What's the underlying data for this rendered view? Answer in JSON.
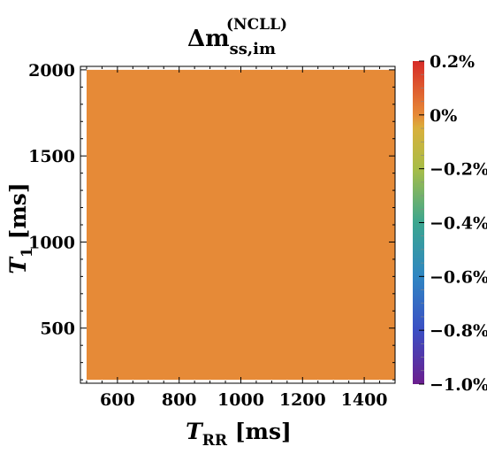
{
  "chart_data": {
    "type": "heatmap",
    "title": {
      "base": "Δm",
      "subscript": "ss,im",
      "superscript": "(NCLL)"
    },
    "xlabel": {
      "base": "T",
      "subscript": "RR",
      "unit": " [ms]"
    },
    "ylabel": {
      "base": "T",
      "subscript": "1",
      "unit": " [ms]"
    },
    "xlim": [
      480,
      1500
    ],
    "ylim": [
      180,
      2020
    ],
    "data_extent": {
      "x": [
        500,
        1500
      ],
      "y": [
        200,
        2000
      ]
    },
    "x_ticks": [
      {
        "value": 600,
        "label": "600"
      },
      {
        "value": 800,
        "label": "800"
      },
      {
        "value": 1000,
        "label": "1000"
      },
      {
        "value": 1200,
        "label": "1200"
      },
      {
        "value": 1400,
        "label": "1400"
      }
    ],
    "y_ticks": [
      {
        "value": 500,
        "label": "500"
      },
      {
        "value": 1000,
        "label": "1000"
      },
      {
        "value": 1500,
        "label": "1500"
      },
      {
        "value": 2000,
        "label": "2000"
      }
    ],
    "field_value_percent": 0,
    "field_color": "#e68a37",
    "grid": false,
    "colorbar": {
      "range_percent": [
        -1.0,
        0.2
      ],
      "stops": [
        {
          "value": -1.0,
          "color": "#6b1e8e"
        },
        {
          "value": -0.8,
          "color": "#3b4fc4"
        },
        {
          "value": -0.6,
          "color": "#2f86c2"
        },
        {
          "value": -0.4,
          "color": "#3ca68f"
        },
        {
          "value": -0.2,
          "color": "#a8bd47"
        },
        {
          "value": -0.05,
          "color": "#d9b03c"
        },
        {
          "value": 0.0,
          "color": "#e68a37"
        },
        {
          "value": 0.2,
          "color": "#d62b28"
        }
      ],
      "ticks": [
        {
          "value": 0.2,
          "label": "0.2%"
        },
        {
          "value": 0.0,
          "label": "0%"
        },
        {
          "value": -0.2,
          "label": "−0.2%"
        },
        {
          "value": -0.4,
          "label": "−0.4%"
        },
        {
          "value": -0.6,
          "label": "−0.6%"
        },
        {
          "value": -0.8,
          "label": "−0.8%"
        },
        {
          "value": -1.0,
          "label": "−1.0%"
        }
      ]
    }
  }
}
